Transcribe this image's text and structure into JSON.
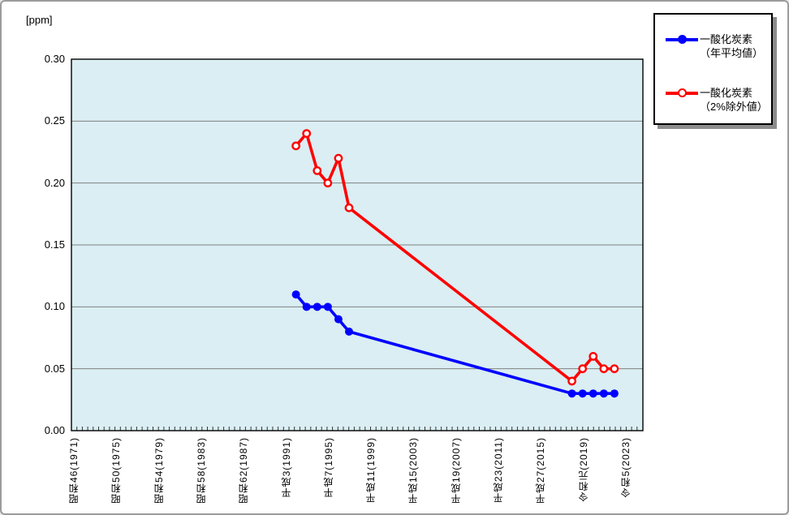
{
  "chart_data": {
    "type": "line",
    "title": "",
    "unit_label": "[ppm]",
    "ylim": [
      0,
      0.3
    ],
    "y_tick_step": 0.05,
    "y_ticks": [
      {
        "value": 0.3,
        "label": "0.30"
      },
      {
        "value": 0.25,
        "label": "0.25"
      },
      {
        "value": 0.2,
        "label": "0.20"
      },
      {
        "value": 0.15,
        "label": "0.15"
      },
      {
        "value": 0.1,
        "label": "0.10"
      },
      {
        "value": 0.05,
        "label": "0.05"
      },
      {
        "value": 0.0,
        "label": "0.00"
      }
    ],
    "x_ticks": [
      {
        "year": 1971,
        "label": "昭和46(1971)"
      },
      {
        "year": 1975,
        "label": "昭和50(1975)"
      },
      {
        "year": 1979,
        "label": "昭和54(1979)"
      },
      {
        "year": 1983,
        "label": "昭和58(1983)"
      },
      {
        "year": 1987,
        "label": "昭和62(1987)"
      },
      {
        "year": 1991,
        "label": "平成3(1991)"
      },
      {
        "year": 1995,
        "label": "平成7(1995)"
      },
      {
        "year": 1999,
        "label": "平成11(1999)"
      },
      {
        "year": 2003,
        "label": "平成15(2003)"
      },
      {
        "year": 2007,
        "label": "平成19(2007)"
      },
      {
        "year": 2011,
        "label": "平成23(2011)"
      },
      {
        "year": 2015,
        "label": "平成27(2015)"
      },
      {
        "year": 2019,
        "label": "令和元(2019)"
      },
      {
        "year": 2023,
        "label": "令和5(2023)"
      }
    ],
    "x_range_years": [
      1971,
      2024
    ],
    "grid": true,
    "plot_bg_color": "#daeef3",
    "gridline_color": "#808080",
    "axis_color": "#000000",
    "legend_position": "top-right",
    "series": [
      {
        "id": "annual-average",
        "name": "一酸化炭素（年平均値）",
        "legend_lines": [
          "一酸化炭素",
          "（年平均値）"
        ],
        "color": "#0000ff",
        "marker": "filled-circle",
        "points": [
          {
            "year": 1992,
            "value": 0.11
          },
          {
            "year": 1993,
            "value": 0.1
          },
          {
            "year": 1994,
            "value": 0.1
          },
          {
            "year": 1995,
            "value": 0.1
          },
          {
            "year": 1996,
            "value": 0.09
          },
          {
            "year": 1997,
            "value": 0.08
          },
          {
            "year": 2018,
            "value": 0.03
          },
          {
            "year": 2019,
            "value": 0.03
          },
          {
            "year": 2020,
            "value": 0.03
          },
          {
            "year": 2021,
            "value": 0.03
          },
          {
            "year": 2022,
            "value": 0.03
          }
        ]
      },
      {
        "id": "exclusion-value",
        "name": "一酸化炭素（2%除外値）",
        "legend_lines": [
          "一酸化炭素",
          "（2%除外値）"
        ],
        "color": "#ff0000",
        "marker": "open-circle",
        "points": [
          {
            "year": 1992,
            "value": 0.23
          },
          {
            "year": 1993,
            "value": 0.24
          },
          {
            "year": 1994,
            "value": 0.21
          },
          {
            "year": 1995,
            "value": 0.2
          },
          {
            "year": 1996,
            "value": 0.22
          },
          {
            "year": 1997,
            "value": 0.18
          },
          {
            "year": 2018,
            "value": 0.04
          },
          {
            "year": 2019,
            "value": 0.05
          },
          {
            "year": 2020,
            "value": 0.06
          },
          {
            "year": 2021,
            "value": 0.05
          },
          {
            "year": 2022,
            "value": 0.05
          }
        ]
      }
    ]
  }
}
